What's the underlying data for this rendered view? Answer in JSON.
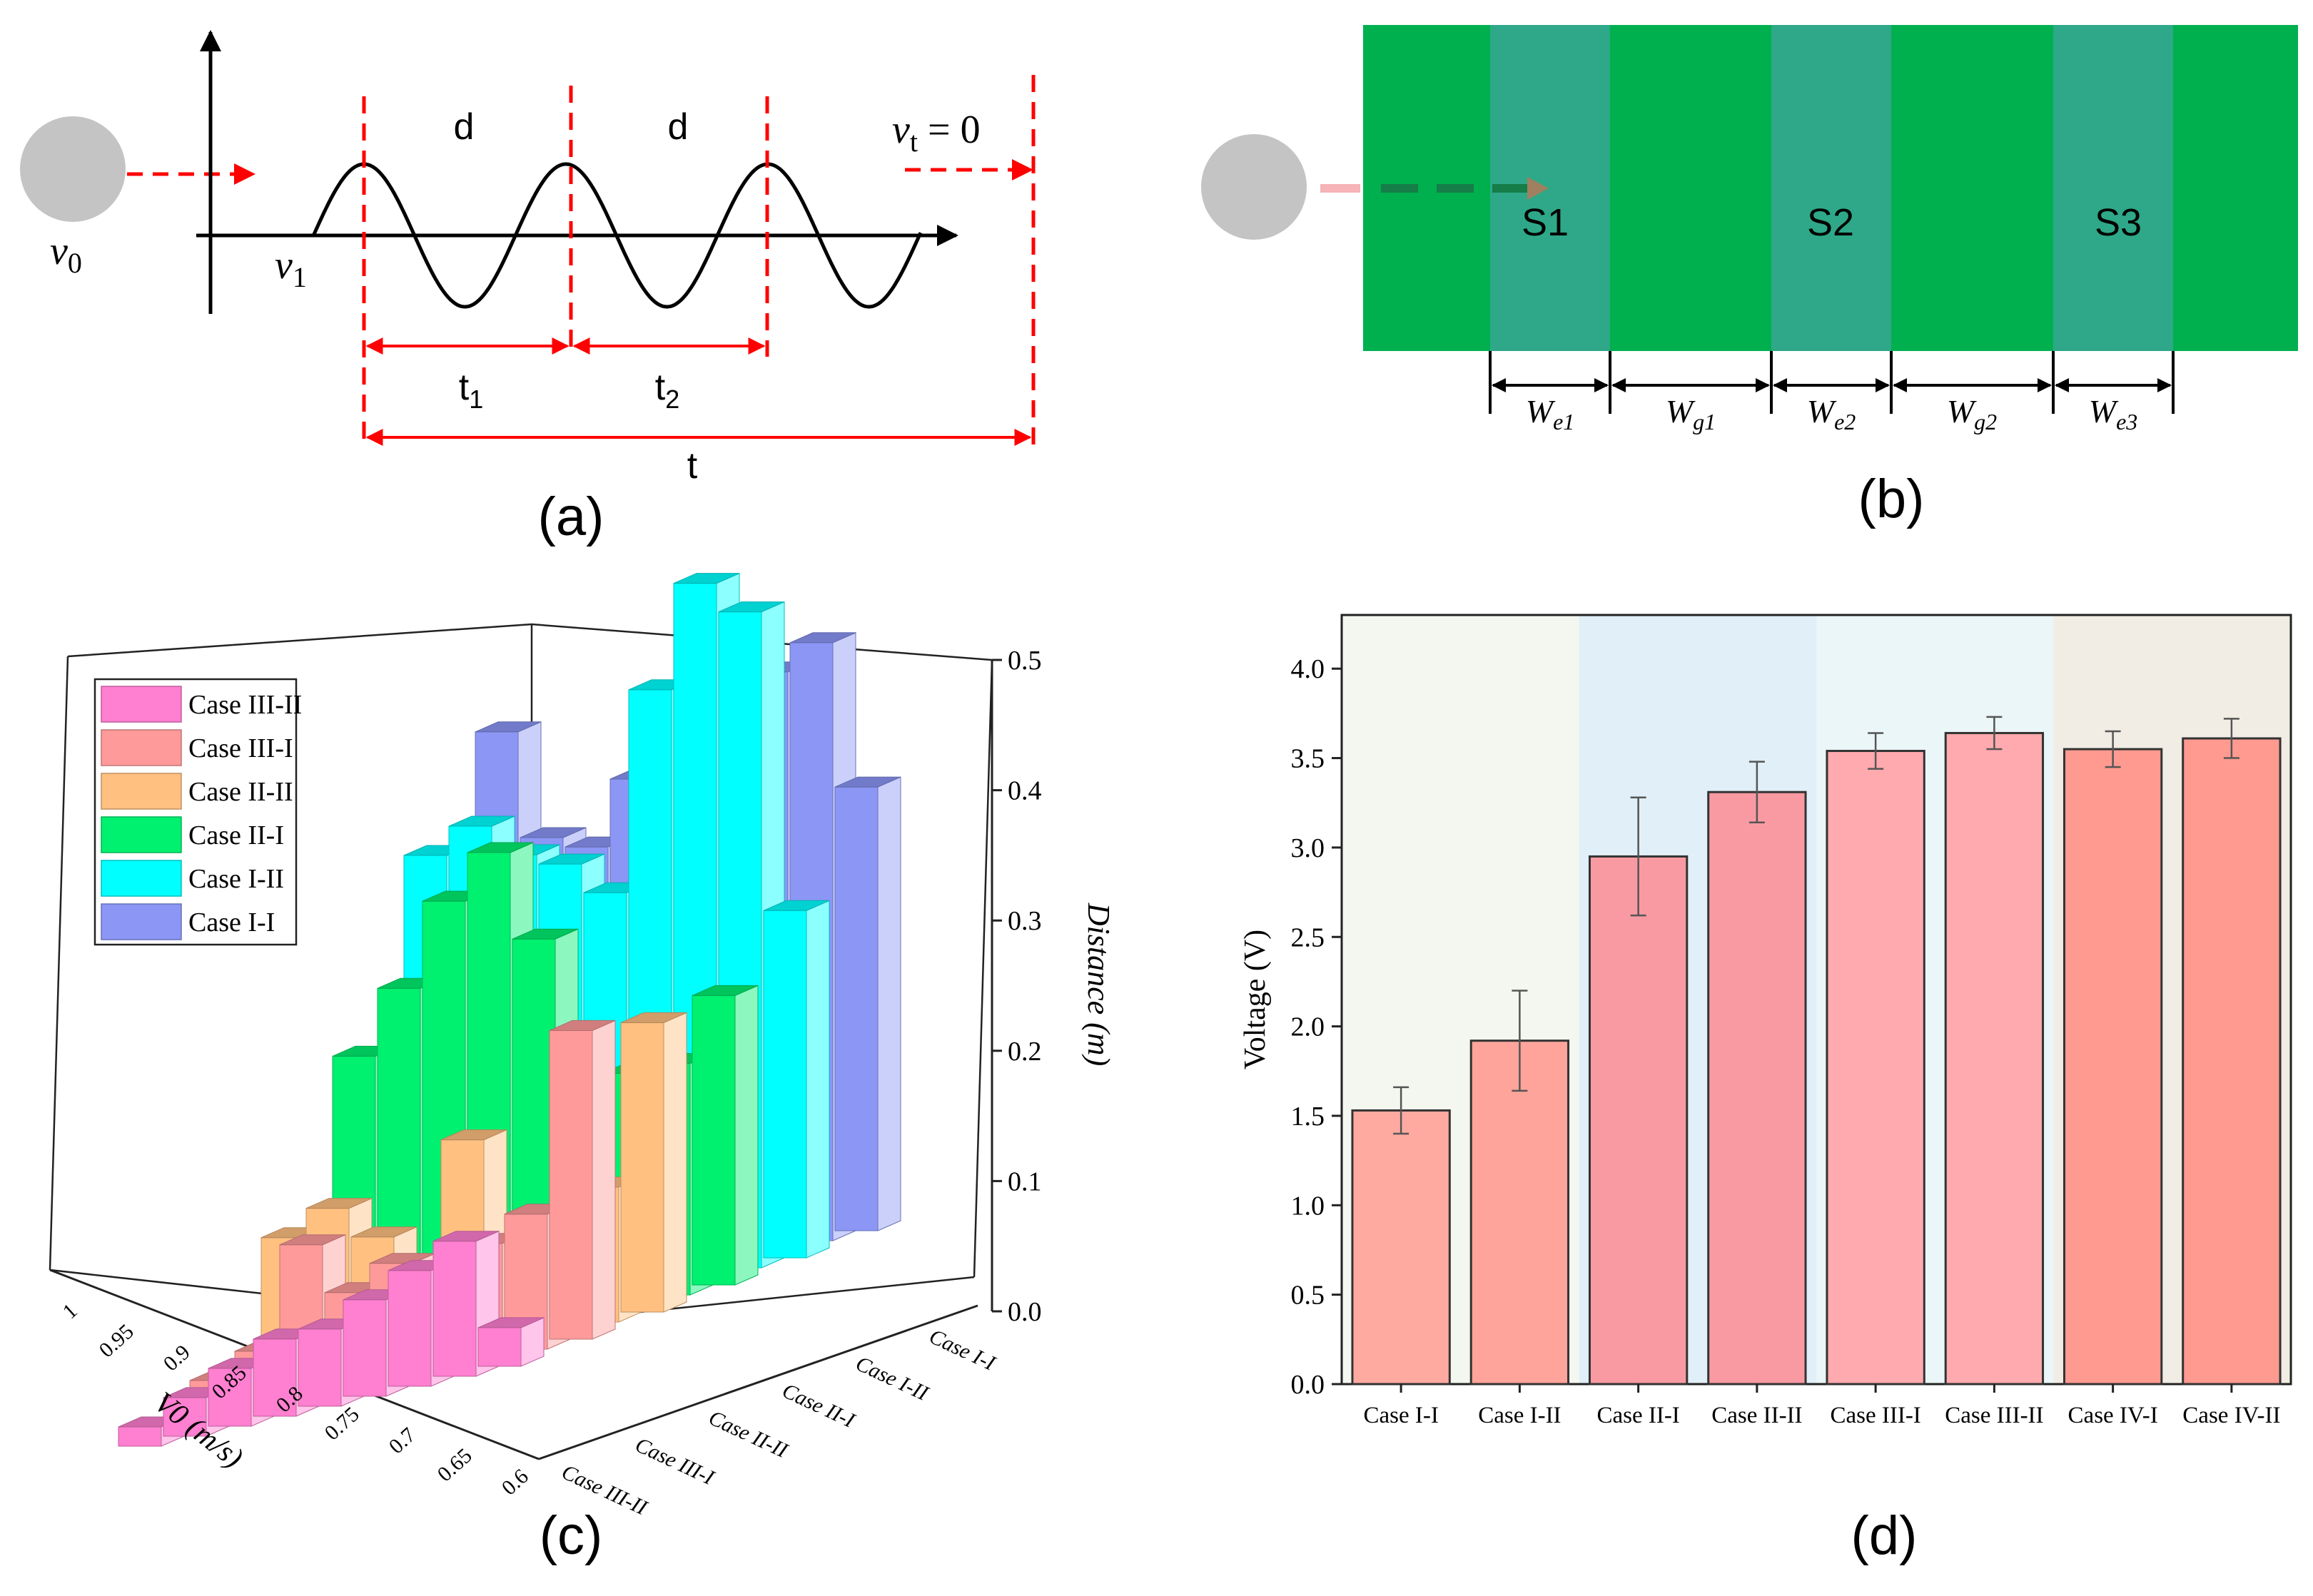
{
  "panel_labels": {
    "a": "(a)",
    "b": "(b)",
    "c": "(c)",
    "d": "(d)"
  },
  "panel_a": {
    "v0": "v",
    "v0_sub": "0",
    "v1": "v",
    "v1_sub": "1",
    "vt": "v",
    "vt_sub": "t",
    "vt_eq": " = 0",
    "d1": "d",
    "d2": "d",
    "t1": "t",
    "t1_sub": "1",
    "t2": "t",
    "t2_sub": "2",
    "t": "t"
  },
  "panel_b": {
    "segments": [
      "S1",
      "S2",
      "S3"
    ],
    "dims": [
      {
        "main": "W",
        "sub": "e1"
      },
      {
        "main": "W",
        "sub": "g1"
      },
      {
        "main": "W",
        "sub": "e2"
      },
      {
        "main": "W",
        "sub": "g2"
      },
      {
        "main": "W",
        "sub": "e3"
      }
    ],
    "colors": {
      "gap": "#00b04f",
      "electrode": "#2ea888",
      "ball": "#c0c0c0"
    }
  },
  "chart_data": [
    {
      "type": "bar3d",
      "zlabel": "Distance (m)",
      "xlabel": "V0 (m/s)",
      "zlim": [
        0.0,
        0.5
      ],
      "zticks": [
        "0.0",
        "0.1",
        "0.2",
        "0.3",
        "0.4",
        "0.5"
      ],
      "x_ticks": [
        "1",
        "0.95",
        "0.9",
        "0.85",
        "0.8",
        "0.75",
        "0.7",
        "0.65",
        "0.6"
      ],
      "y_ticks": [
        "Case I-I",
        "Case I-II",
        "Case II-I",
        "Case II-II",
        "Case III-I",
        "Case III-II"
      ],
      "legend_position": "top-left",
      "series": [
        {
          "name": "Case III-II",
          "color": "#ff7fd0",
          "values": [
            0.01,
            0.02,
            0.03,
            0.04,
            0.04,
            0.05,
            0.06,
            0.07,
            0.02
          ]
        },
        {
          "name": "Case III-I",
          "color": "#ff9a9a",
          "values": [
            0.02,
            0.03,
            0.08,
            0.05,
            0.06,
            0.04,
            0.06,
            0.07,
            0.16
          ]
        },
        {
          "name": "Case II-II",
          "color": "#ffc080",
          "values": [
            0.08,
            0.09,
            0.07,
            0.05,
            0.11,
            0.05,
            0.05,
            0.07,
            0.15
          ]
        },
        {
          "name": "Case II-I",
          "color": "#00f070",
          "values": [
            0.16,
            0.19,
            0.23,
            0.25,
            0.2,
            0.12,
            0.12,
            0.12,
            0.15
          ]
        },
        {
          "name": "Case I-II",
          "color": "#00ffff",
          "values": [
            0.25,
            0.26,
            0.24,
            0.23,
            0.21,
            0.31,
            0.36,
            0.34,
            0.18
          ]
        },
        {
          "name": "Case I-I",
          "color": "#8b96f5",
          "values": [
            0.3,
            0.24,
            0.23,
            0.26,
            0.24,
            0.24,
            0.3,
            0.31,
            0.23
          ]
        }
      ]
    },
    {
      "type": "bar",
      "ylabel": "Voltage (V)",
      "ylim": [
        0.0,
        4.3
      ],
      "yticks": [
        "0.0",
        "0.5",
        "1.0",
        "1.5",
        "2.0",
        "2.5",
        "3.0",
        "3.5",
        "4.0"
      ],
      "categories": [
        "Case I-I",
        "Case I-II",
        "Case II-I",
        "Case II-II",
        "Case III-I",
        "Case III-II",
        "Case IV-I",
        "Case IV-II"
      ],
      "values": [
        1.53,
        1.92,
        2.95,
        3.31,
        3.54,
        3.64,
        3.55,
        3.61
      ],
      "errors": [
        0.13,
        0.28,
        0.33,
        0.17,
        0.1,
        0.09,
        0.1,
        0.11
      ],
      "bar_colors": [
        "#ffaaa0",
        "#ffa49a",
        "#f99aa2",
        "#f99aa2",
        "#ffaaae",
        "#ffaaae",
        "#ff9a90",
        "#ff9a90"
      ],
      "band_colors": [
        "#f3f7ef",
        "#e0eff8",
        "#eaf6f7",
        "#f1ede4"
      ]
    }
  ]
}
